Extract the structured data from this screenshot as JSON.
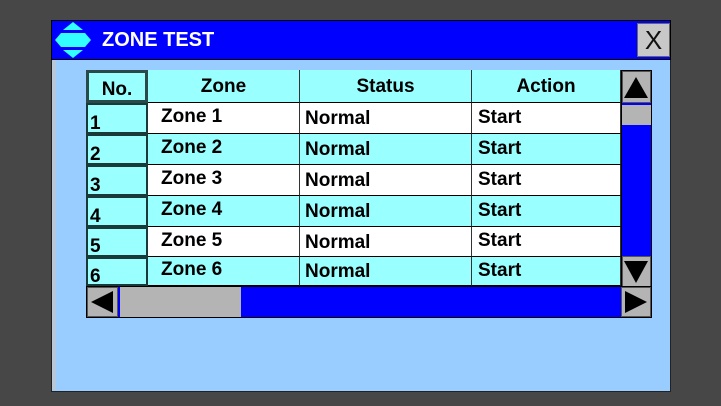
{
  "window": {
    "title": "ZONE TEST",
    "close_label": "X",
    "icon": "up-down-arrows-icon"
  },
  "colors": {
    "titlebar": "#0000ff",
    "window_bg": "#99ccff",
    "row_alt": "#99ffff",
    "row": "#ffffff",
    "scroll_track": "#0000ff",
    "scroll_thumb": "#b4b4b4"
  },
  "table": {
    "columns": [
      "No.",
      "Zone",
      "Status",
      "Action"
    ],
    "rows": [
      {
        "no": "1",
        "zone": "Zone 1",
        "status": "Normal",
        "action": "Start"
      },
      {
        "no": "2",
        "zone": "Zone 2",
        "status": "Normal",
        "action": "Start"
      },
      {
        "no": "3",
        "zone": "Zone 3",
        "status": "Normal",
        "action": "Start"
      },
      {
        "no": "4",
        "zone": "Zone 4",
        "status": "Normal",
        "action": "Start"
      },
      {
        "no": "5",
        "zone": "Zone 5",
        "status": "Normal",
        "action": "Start"
      },
      {
        "no": "6",
        "zone": "Zone 6",
        "status": "Normal",
        "action": "Start"
      }
    ]
  },
  "scrollbars": {
    "vertical_icons": [
      "arrow-up-icon",
      "arrow-down-icon"
    ],
    "horizontal_icons": [
      "arrow-left-icon",
      "arrow-right-icon"
    ]
  }
}
